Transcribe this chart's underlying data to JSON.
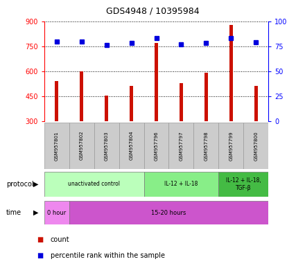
{
  "title": "GDS4948 / 10395984",
  "samples": [
    "GSM957801",
    "GSM957802",
    "GSM957803",
    "GSM957804",
    "GSM957796",
    "GSM957797",
    "GSM957798",
    "GSM957799",
    "GSM957800"
  ],
  "counts": [
    540,
    600,
    455,
    510,
    770,
    530,
    590,
    880,
    510
  ],
  "percentile_ranks": [
    80,
    80,
    76,
    78,
    83,
    77,
    78,
    83,
    79
  ],
  "ylim_left": [
    300,
    900
  ],
  "ylim_right": [
    0,
    100
  ],
  "yticks_left": [
    300,
    450,
    600,
    750,
    900
  ],
  "yticks_right": [
    0,
    25,
    50,
    75,
    100
  ],
  "bar_color": "#cc1100",
  "dot_color": "#0000dd",
  "title_fontsize": 9,
  "protocol_groups": [
    {
      "label": "unactivated control",
      "start": 0,
      "end": 4,
      "color": "#bbffbb"
    },
    {
      "label": "IL-12 + IL-18",
      "start": 4,
      "end": 7,
      "color": "#88ee88"
    },
    {
      "label": "IL-12 + IL-18,\nTGF-β",
      "start": 7,
      "end": 9,
      "color": "#44bb44"
    }
  ],
  "time_groups": [
    {
      "label": "0 hour",
      "start": 0,
      "end": 1,
      "color": "#ee88ee"
    },
    {
      "label": "15-20 hours",
      "start": 1,
      "end": 9,
      "color": "#cc55cc"
    }
  ],
  "protocol_row_label": "protocol",
  "time_row_label": "time",
  "legend_count_label": "count",
  "legend_pct_label": "percentile rank within the sample",
  "label_box_color": "#cccccc",
  "label_box_edge": "#999999"
}
